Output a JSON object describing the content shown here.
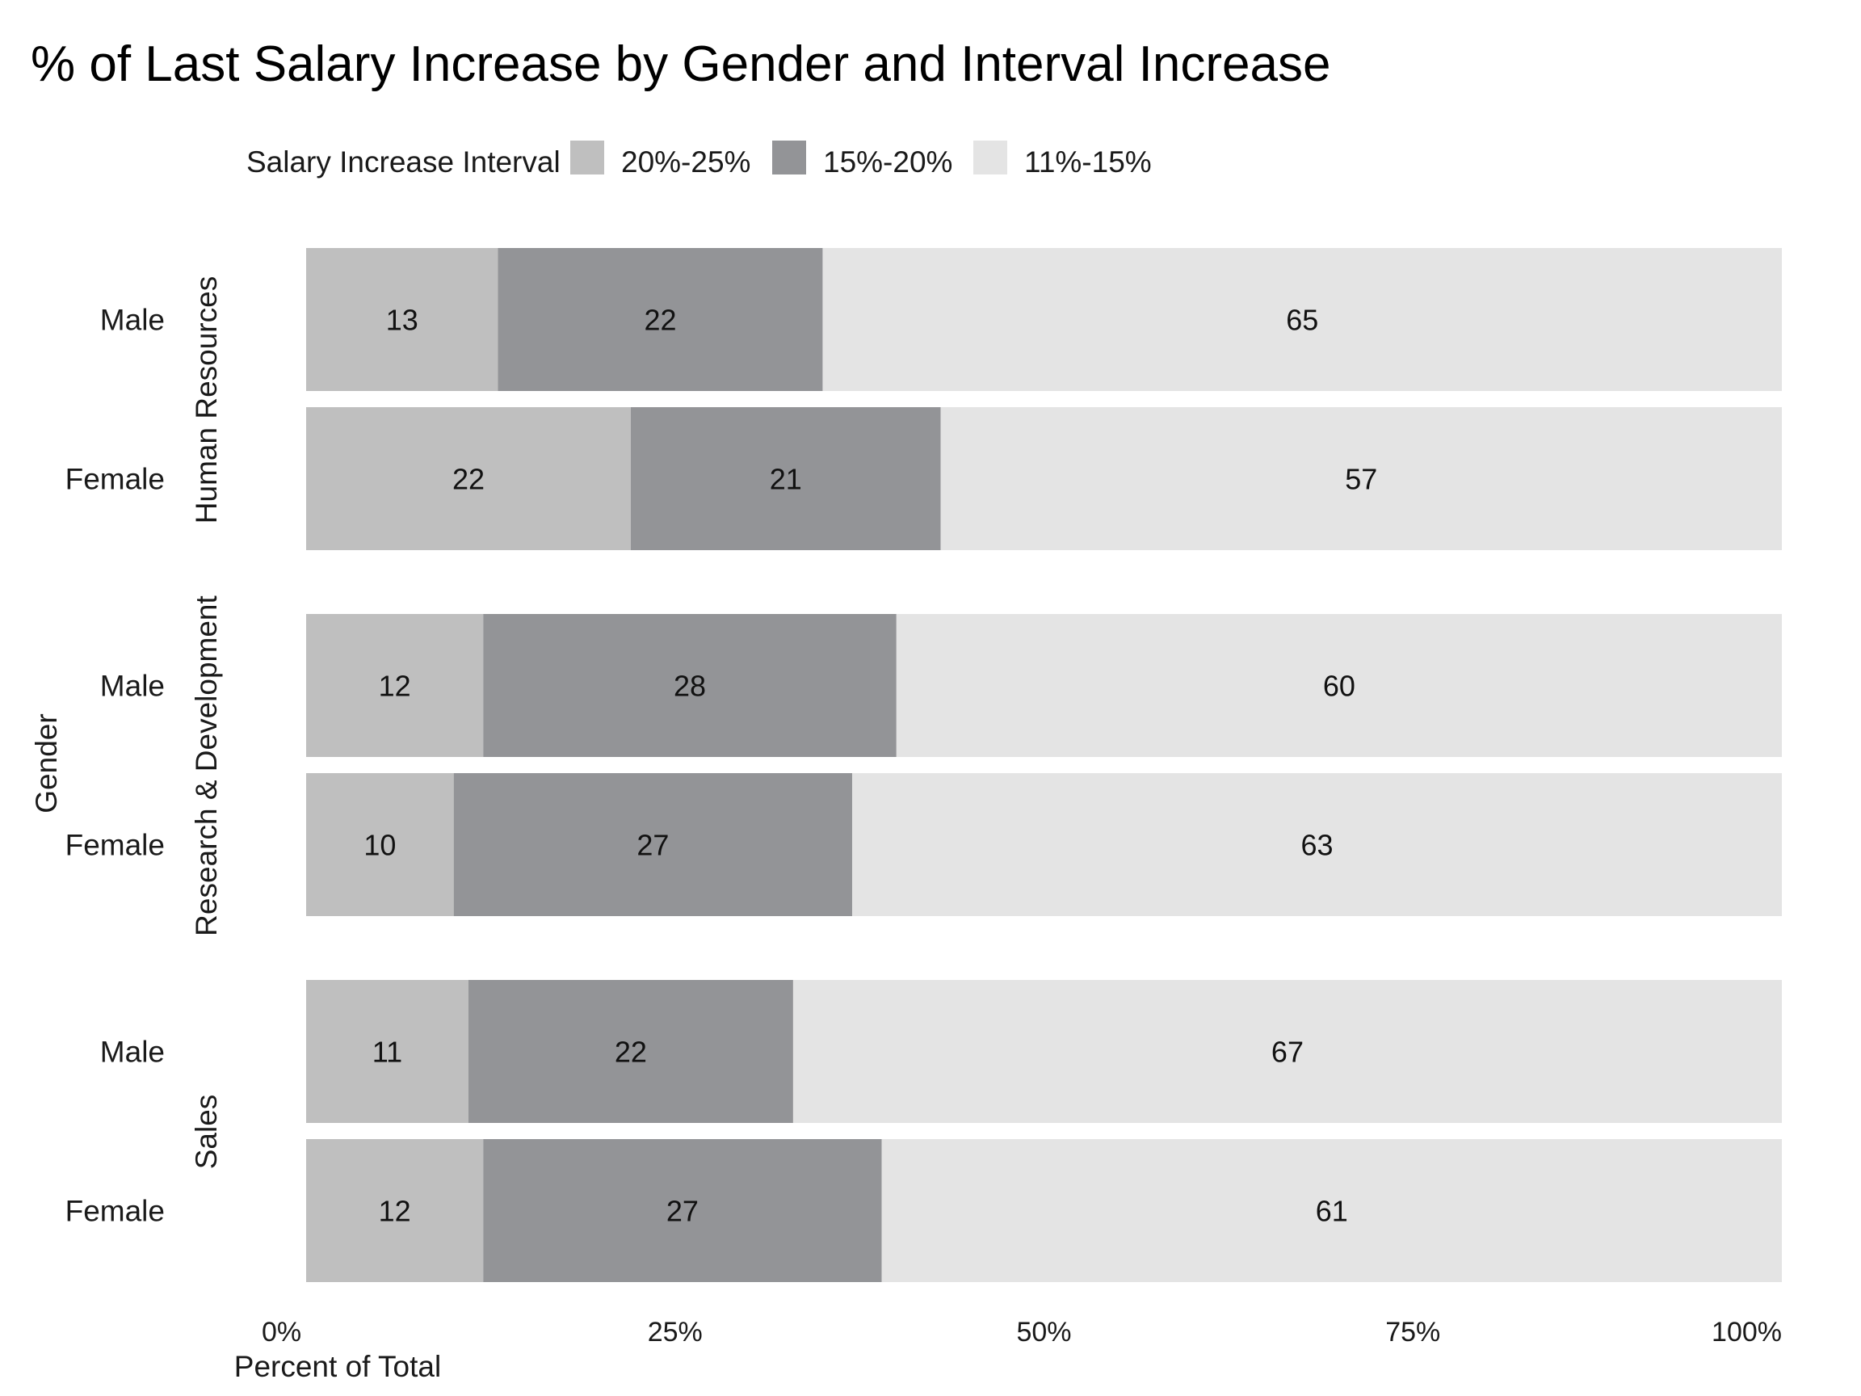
{
  "chart_data": {
    "type": "bar",
    "orientation": "horizontal",
    "stacked": true,
    "title": "% of Last Salary Increase by Gender and Interval Increase",
    "legend": {
      "title": "Salary Increase Interval",
      "position": "top"
    },
    "xlabel": "Percent of Total",
    "ylabel": "Gender",
    "xlim": [
      0,
      100
    ],
    "xticks": [
      "0%",
      "25%",
      "50%",
      "75%",
      "100%"
    ],
    "grid": false,
    "series": [
      {
        "name": "20%-25%",
        "color": "#bfbfbf"
      },
      {
        "name": "15%-20%",
        "color": "#939497"
      },
      {
        "name": "11%-15%",
        "color": "#e4e4e4"
      }
    ],
    "facets": [
      {
        "label": "Human Resources",
        "bars": [
          {
            "category": "Male",
            "values": [
              13,
              22,
              65
            ]
          },
          {
            "category": "Female",
            "values": [
              22,
              21,
              57
            ]
          }
        ]
      },
      {
        "label": "Research & Development",
        "bars": [
          {
            "category": "Male",
            "values": [
              12,
              28,
              60
            ]
          },
          {
            "category": "Female",
            "values": [
              10,
              27,
              63
            ]
          }
        ]
      },
      {
        "label": "Sales",
        "bars": [
          {
            "category": "Male",
            "values": [
              11,
              22,
              67
            ]
          },
          {
            "category": "Female",
            "values": [
              12,
              27,
              61
            ]
          }
        ]
      }
    ]
  }
}
